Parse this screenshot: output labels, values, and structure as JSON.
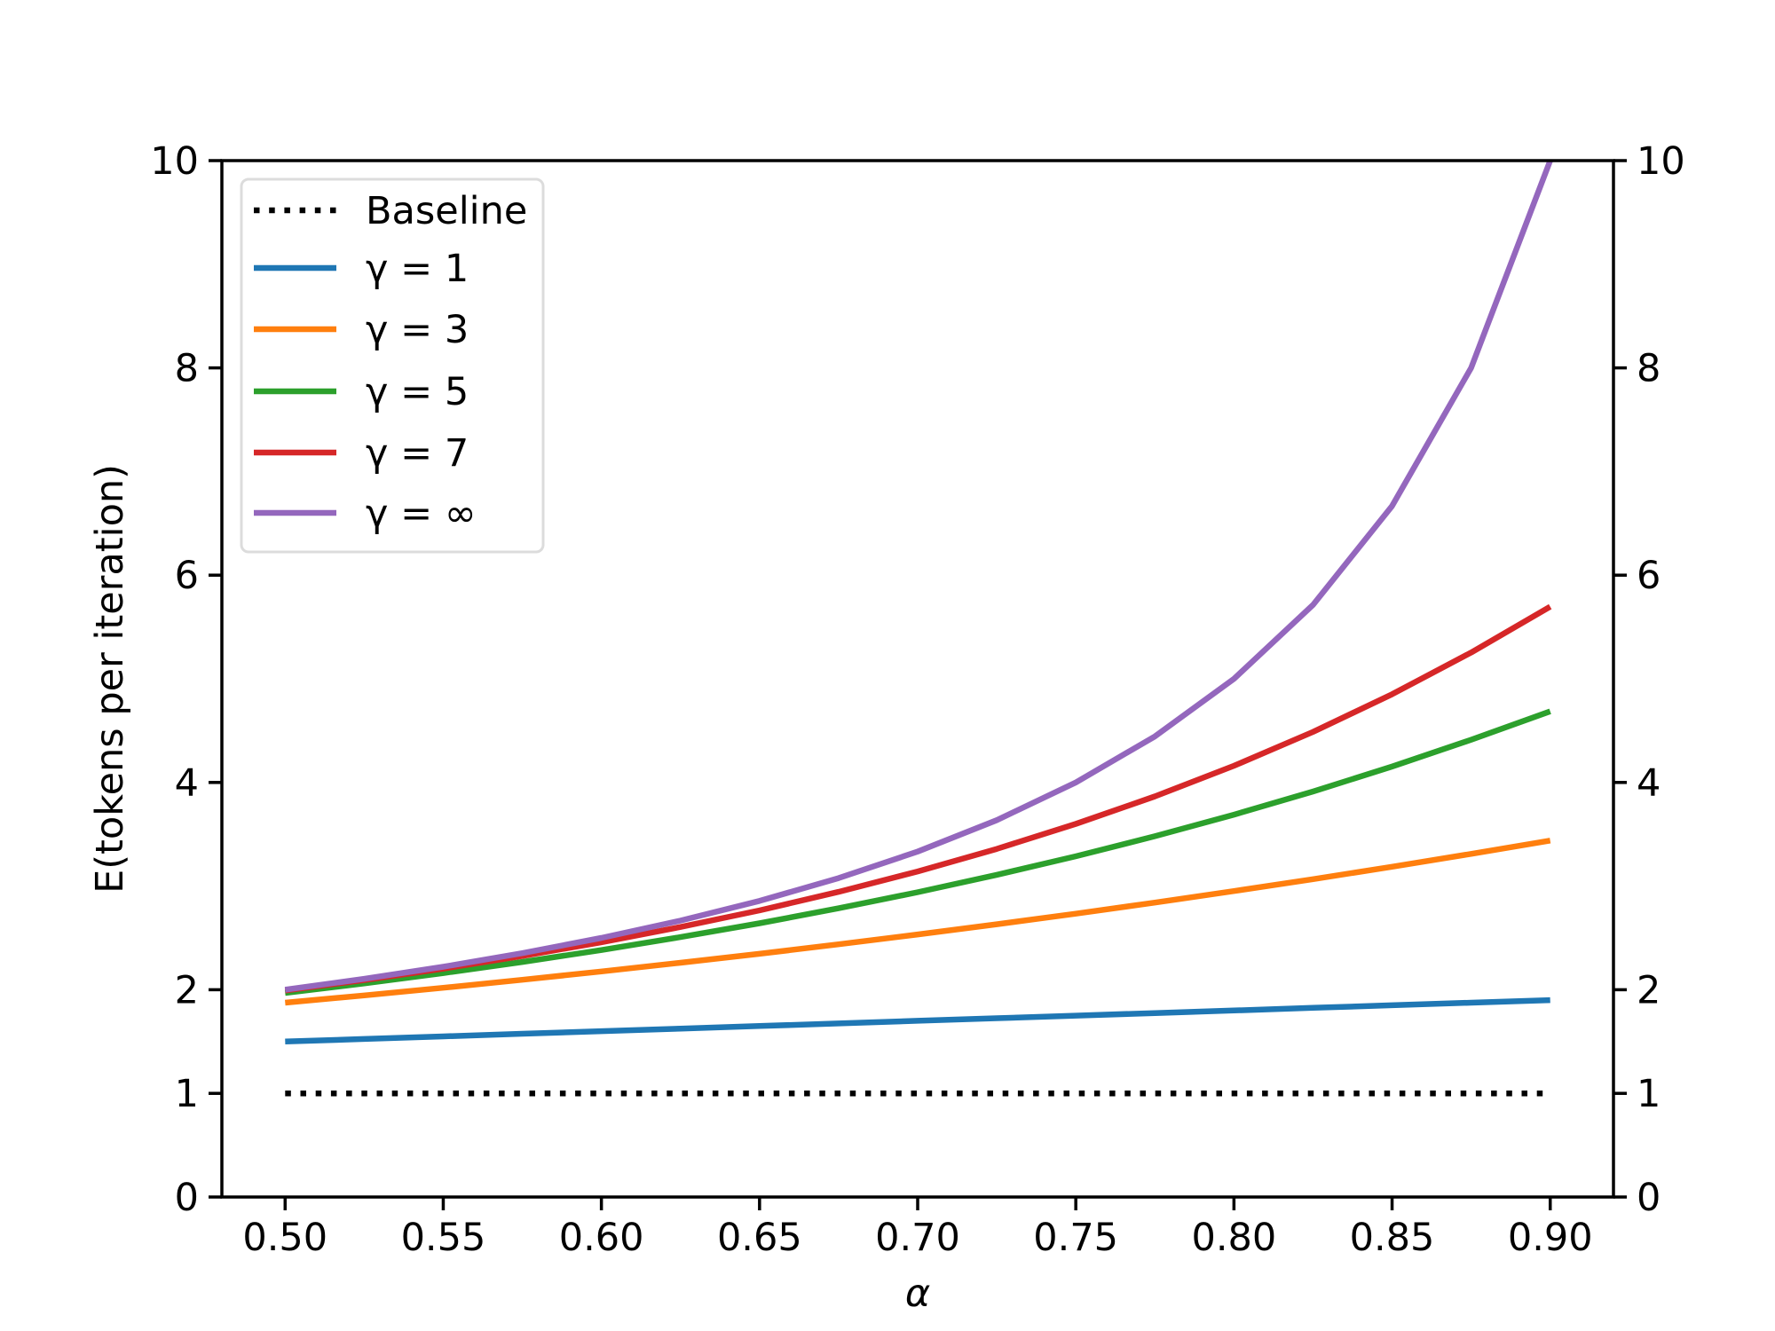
{
  "chart_data": {
    "type": "line",
    "title": "",
    "xlabel": "α",
    "ylabel": "E(tokens per iteration)",
    "xlim": [
      0.48,
      0.92
    ],
    "ylim": [
      0,
      10
    ],
    "xticks": [
      "0.50",
      "0.55",
      "0.60",
      "0.65",
      "0.70",
      "0.75",
      "0.80",
      "0.85",
      "0.90"
    ],
    "yticks": [
      "0",
      "1",
      "2",
      "4",
      "6",
      "8",
      "10"
    ],
    "right_yticks": [
      "0",
      "1",
      "2",
      "4",
      "6",
      "8",
      "10"
    ],
    "grid": false,
    "legend_placement": "upper-left",
    "x": [
      0.5,
      0.525,
      0.55,
      0.575,
      0.6,
      0.625,
      0.65,
      0.675,
      0.7,
      0.725,
      0.75,
      0.775,
      0.8,
      0.825,
      0.85,
      0.875,
      0.9
    ],
    "series": [
      {
        "name": "Baseline",
        "color": "#000000",
        "style": "dotted",
        "values": [
          1,
          1,
          1,
          1,
          1,
          1,
          1,
          1,
          1,
          1,
          1,
          1,
          1,
          1,
          1,
          1,
          1
        ]
      },
      {
        "name": "γ = 1",
        "color": "#1f77b4",
        "style": "solid",
        "values": [
          1.5,
          1.525,
          1.55,
          1.575,
          1.6,
          1.625,
          1.65,
          1.675,
          1.7,
          1.725,
          1.75,
          1.775,
          1.8,
          1.825,
          1.85,
          1.875,
          1.9
        ]
      },
      {
        "name": "γ = 3",
        "color": "#ff7f0e",
        "style": "solid",
        "values": [
          1.875,
          1.945,
          2.019,
          2.096,
          2.176,
          2.26,
          2.347,
          2.438,
          2.533,
          2.632,
          2.734,
          2.841,
          2.952,
          3.067,
          3.187,
          3.311,
          3.439
        ]
      },
      {
        "name": "γ = 5",
        "color": "#2ca02c",
        "style": "solid",
        "values": [
          1.969,
          2.061,
          2.161,
          2.268,
          2.383,
          2.508,
          2.641,
          2.786,
          2.941,
          3.109,
          3.288,
          3.481,
          3.689,
          3.913,
          4.153,
          4.412,
          4.686
        ]
      },
      {
        "name": "γ = 7",
        "color": "#d62728",
        "style": "solid",
        "values": [
          1.992,
          2.093,
          2.204,
          2.325,
          2.458,
          2.605,
          2.765,
          2.944,
          3.141,
          3.359,
          3.6,
          3.866,
          4.161,
          4.488,
          4.851,
          5.253,
          5.696
        ]
      },
      {
        "name": "γ = ∞",
        "color": "#9467bd",
        "style": "solid",
        "values": [
          2.0,
          2.105,
          2.222,
          2.353,
          2.5,
          2.667,
          2.857,
          3.077,
          3.333,
          3.636,
          4.0,
          4.444,
          5.0,
          5.714,
          6.667,
          8.0,
          10.0
        ]
      }
    ]
  }
}
